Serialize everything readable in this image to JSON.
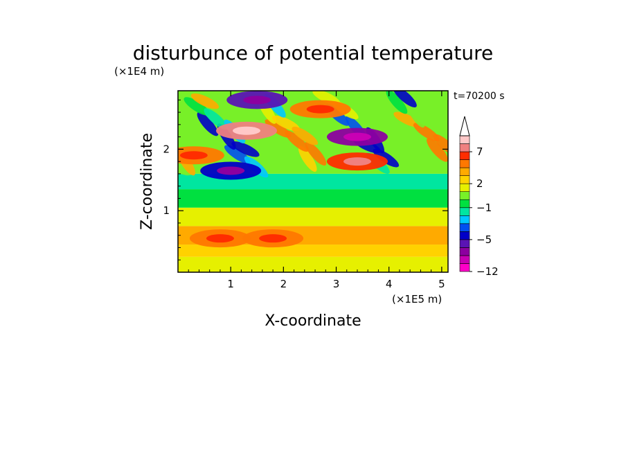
{
  "chart_data": {
    "type": "heatmap",
    "title": "disturbunce of potential temperature",
    "xlabel": "X-coordinate",
    "ylabel": "Z-coordinate",
    "x_unit": "(×1E5 m)",
    "y_unit": "(×1E4 m)",
    "time_label": "t=70200 s",
    "xlim": [
      0,
      5.12
    ],
    "ylim": [
      0,
      2.95
    ],
    "x_ticks": [
      1,
      2,
      3,
      4,
      5
    ],
    "y_ticks": [
      1,
      2
    ],
    "colorbar": {
      "levels": [
        -12,
        -10,
        -8,
        -6,
        -5,
        -4,
        -3,
        -2,
        -1,
        0,
        1,
        2,
        3,
        4,
        5,
        7,
        9,
        11
      ],
      "labeled_levels": [
        7,
        2,
        -1,
        -5,
        -12
      ],
      "colors": [
        "#ff00c8",
        "#c800b4",
        "#8c00a0",
        "#5a14b4",
        "#0000c8",
        "#0050f0",
        "#00c8ff",
        "#00e6a0",
        "#00e040",
        "#78f028",
        "#e6f000",
        "#ffd200",
        "#ffaa00",
        "#ff7800",
        "#ff2d00",
        "#f08080",
        "#ffc8c8"
      ],
      "extend": "max"
    },
    "bands": [
      {
        "z_range": [
          0.0,
          0.25
        ],
        "theta": 1.8
      },
      {
        "z_range": [
          0.25,
          0.45
        ],
        "theta": 2.7
      },
      {
        "z_range": [
          0.45,
          0.75
        ],
        "theta": 3.6
      },
      {
        "z_range": [
          0.75,
          1.05
        ],
        "theta": 1.2
      },
      {
        "z_range": [
          1.05,
          1.35
        ],
        "theta": -0.3
      },
      {
        "z_range": [
          1.35,
          1.6
        ],
        "theta": -1.3
      },
      {
        "z_range": [
          1.6,
          2.95
        ],
        "theta": 0.0
      }
    ],
    "features": [
      {
        "x": 1.3,
        "z": 2.3,
        "theta": 8.5,
        "kind": "warm-max"
      },
      {
        "x": 2.7,
        "z": 2.65,
        "theta": 4.5,
        "kind": "warm"
      },
      {
        "x": 3.4,
        "z": 1.8,
        "theta": 6.5,
        "kind": "warm"
      },
      {
        "x": 0.3,
        "z": 1.9,
        "theta": 4.5,
        "kind": "warm"
      },
      {
        "x": 1.5,
        "z": 2.8,
        "theta": -6.0,
        "kind": "cold"
      },
      {
        "x": 3.4,
        "z": 2.2,
        "theta": -7.5,
        "kind": "cold-min"
      },
      {
        "x": 1.0,
        "z": 1.65,
        "theta": -5.0,
        "kind": "cold"
      },
      {
        "x": 0.8,
        "z": 0.55,
        "theta": 4.5,
        "kind": "warm"
      },
      {
        "x": 1.8,
        "z": 0.55,
        "theta": 4.0,
        "kind": "warm"
      }
    ]
  }
}
